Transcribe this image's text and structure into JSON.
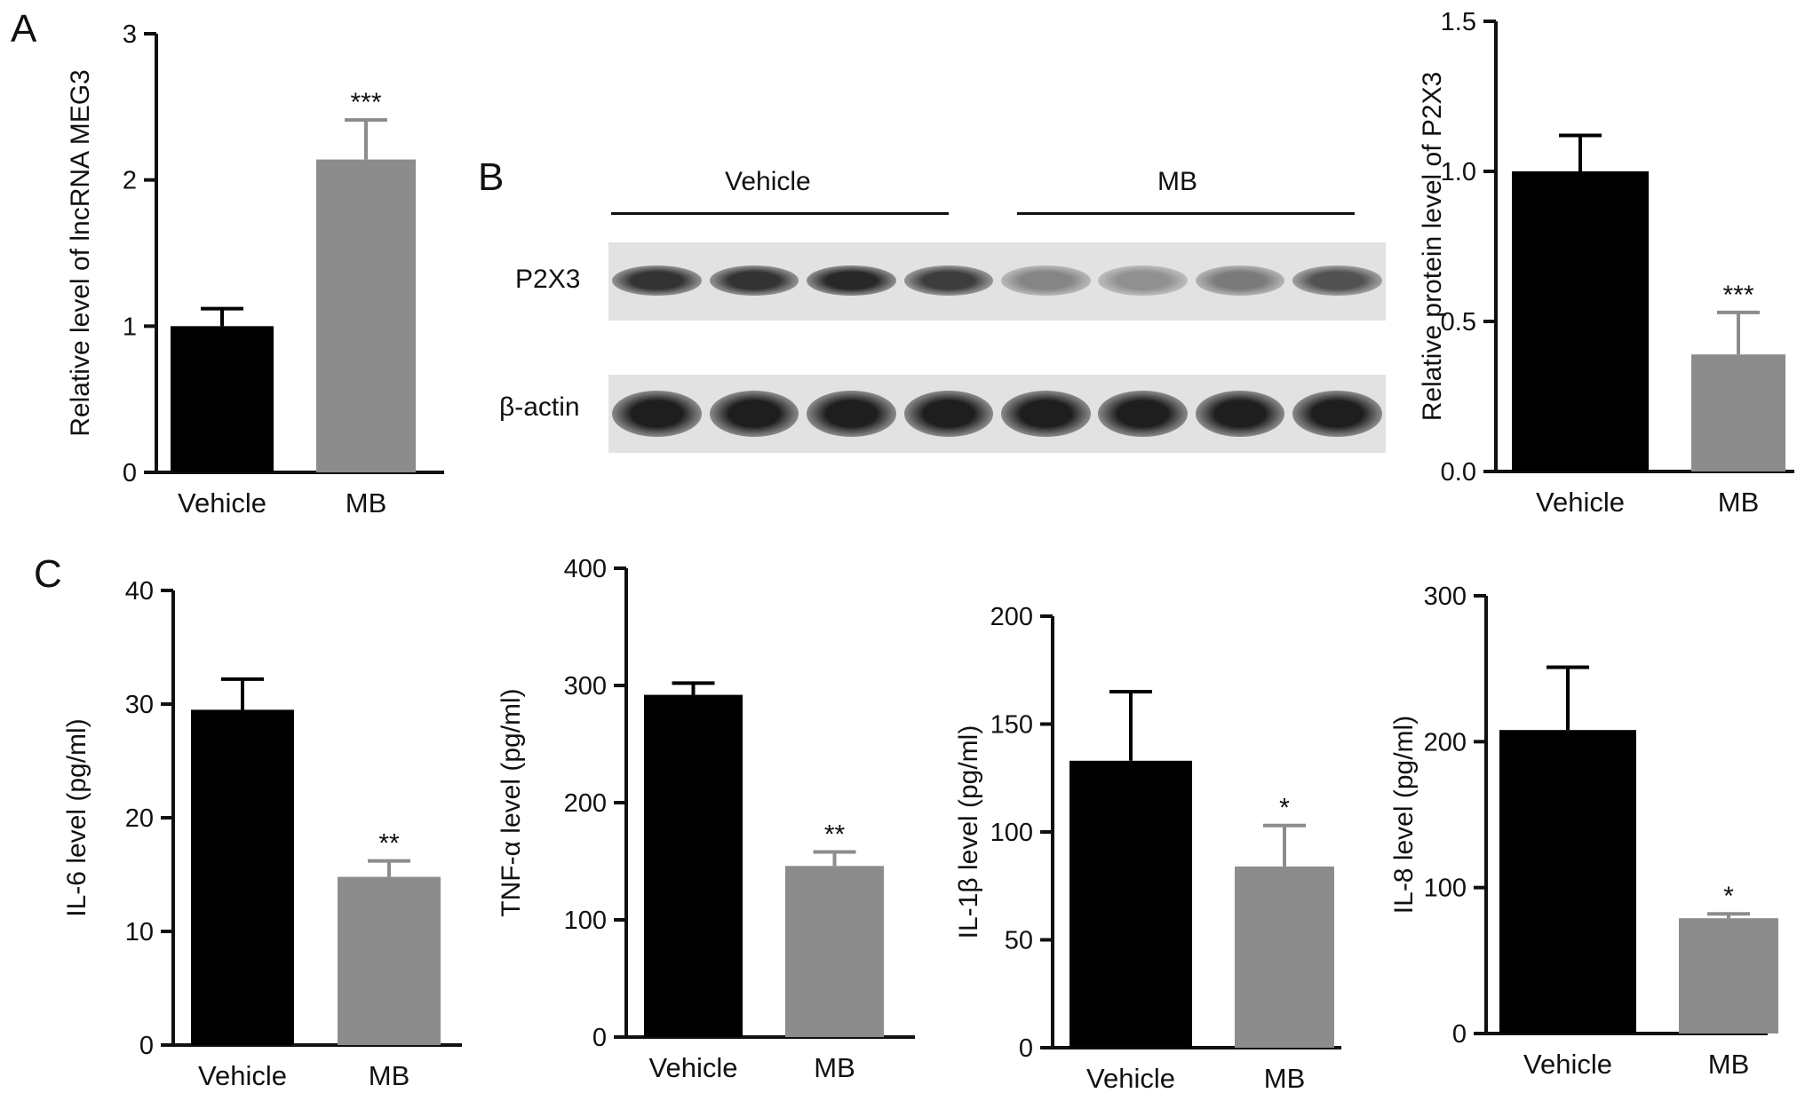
{
  "panels": {
    "a": "A",
    "b": "B",
    "c": "C"
  },
  "blot": {
    "groups": [
      "Vehicle",
      "MB"
    ],
    "rows": [
      "P2X3",
      "β-actin"
    ],
    "p2x3_band_intensity": [
      0.85,
      0.85,
      0.9,
      0.8,
      0.45,
      0.4,
      0.5,
      0.7
    ],
    "actin_band_intensity": [
      0.95,
      0.95,
      0.95,
      0.95,
      0.95,
      0.95,
      0.95,
      0.95
    ]
  },
  "colors": {
    "vehicle": "#000000",
    "mb": "#8c8c8c"
  },
  "chart_data": [
    {
      "id": "meg3",
      "type": "bar",
      "categories": [
        "Vehicle",
        "MB"
      ],
      "values": [
        1.0,
        2.14
      ],
      "errors": [
        0.12,
        0.27
      ],
      "significance": [
        "",
        "***"
      ],
      "ylabel": "Relative level of lncRNA MEG3",
      "ylim": [
        0,
        3
      ],
      "yticks": [
        "0",
        "1",
        "2",
        "3"
      ],
      "grid": false
    },
    {
      "id": "p2x3",
      "type": "bar",
      "categories": [
        "Vehicle",
        "MB"
      ],
      "values": [
        1.0,
        0.39
      ],
      "errors": [
        0.12,
        0.14
      ],
      "significance": [
        "",
        "***"
      ],
      "ylabel": "Relative protein level of P2X3",
      "ylim": [
        0,
        1.5
      ],
      "yticks": [
        "0.0",
        "0.5",
        "1.0",
        "1.5"
      ],
      "grid": false
    },
    {
      "id": "il6",
      "type": "bar",
      "categories": [
        "Vehicle",
        "MB"
      ],
      "values": [
        29.5,
        14.8
      ],
      "errors": [
        2.7,
        1.4
      ],
      "significance": [
        "",
        "**"
      ],
      "ylabel": "IL-6 level (pg/ml)",
      "ylim": [
        0,
        40
      ],
      "yticks": [
        "0",
        "10",
        "20",
        "30",
        "40"
      ],
      "grid": false
    },
    {
      "id": "tnf",
      "type": "bar",
      "categories": [
        "Vehicle",
        "MB"
      ],
      "values": [
        292,
        146
      ],
      "errors": [
        10,
        12
      ],
      "significance": [
        "",
        "**"
      ],
      "ylabel": "TNF-α level (pg/ml)",
      "ylim": [
        0,
        400
      ],
      "yticks": [
        "0",
        "100",
        "200",
        "300",
        "400"
      ],
      "grid": false
    },
    {
      "id": "il1b",
      "type": "bar",
      "categories": [
        "Vehicle",
        "MB"
      ],
      "values": [
        133,
        84
      ],
      "errors": [
        32,
        19
      ],
      "significance": [
        "",
        "*"
      ],
      "ylabel": "IL-1β level (pg/ml)",
      "ylim": [
        0,
        200
      ],
      "yticks": [
        "0",
        "50",
        "100",
        "150",
        "200"
      ],
      "grid": false
    },
    {
      "id": "il8",
      "type": "bar",
      "categories": [
        "Vehicle",
        "MB"
      ],
      "values": [
        208,
        79
      ],
      "errors": [
        43,
        3
      ],
      "significance": [
        "",
        "*"
      ],
      "ylabel": "IL-8 level (pg/ml)",
      "ylim": [
        0,
        300
      ],
      "yticks": [
        "0",
        "100",
        "200",
        "300"
      ],
      "grid": false
    }
  ]
}
